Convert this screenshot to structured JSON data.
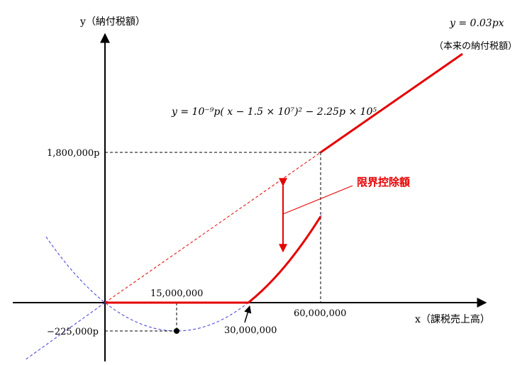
{
  "axes": {
    "y_label": "y（納付税額）",
    "x_label": "x（課税売上高）"
  },
  "labels": {
    "line_eq": "y = 0.03px",
    "line_note": "（本来の納付税額）",
    "parabola_eq": "y = 10⁻⁹p( x − 1.5 × 10⁷)² − 2.25p × 10⁵",
    "deduction": "限界控除額"
  },
  "ticks": {
    "y_1800000": "1,800,000p",
    "y_minus_225000": "−225,000p",
    "x_15000000": "15,000,000",
    "x_30000000": "30,000,000",
    "x_60000000": "60,000,000"
  },
  "colors": {
    "red": "#e60000",
    "blue": "#3b3bd6",
    "black": "#000000"
  }
}
